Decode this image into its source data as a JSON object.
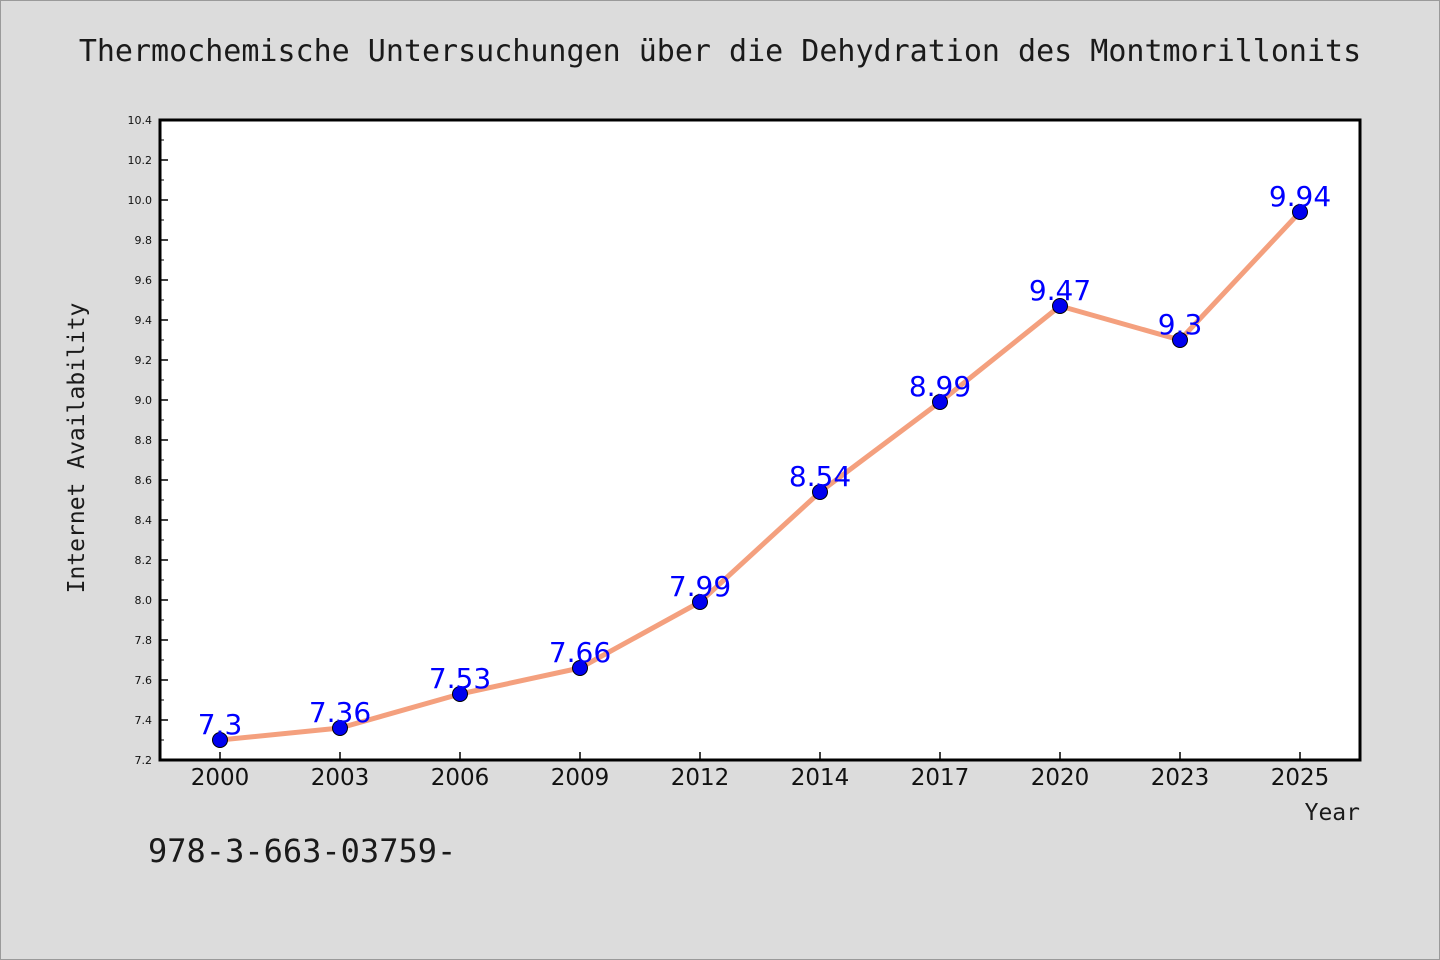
{
  "chart_data": {
    "type": "line",
    "title": "Thermochemische Untersuchungen über die Dehydration des Montmorillonits",
    "xlabel": "Year",
    "ylabel": "Internet Availability",
    "categories": [
      "2000",
      "2003",
      "2006",
      "2009",
      "2012",
      "2014",
      "2017",
      "2020",
      "2023",
      "2025"
    ],
    "series": [
      {
        "values": [
          7.3,
          7.36,
          7.53,
          7.66,
          7.99,
          8.54,
          8.99,
          9.47,
          9.3,
          9.94
        ],
        "data_labels": [
          "7.3",
          "7.36",
          "7.53",
          "7.66",
          "7.99",
          "8.54",
          "8.99",
          "9.47",
          "9.3",
          "9.94"
        ]
      }
    ],
    "ylim": [
      7.2,
      10.4
    ],
    "yticks": [
      "7.2",
      "7.4",
      "7.6",
      "7.8",
      "8.0",
      "8.2",
      "8.4",
      "8.6",
      "8.8",
      "9.0",
      "9.2",
      "9.4",
      "9.6",
      "9.8",
      "10.0",
      "10.2",
      "10.4"
    ],
    "grid": false,
    "legend": "none",
    "colors": {
      "line": "#f4a07e",
      "marker": "#0000ee",
      "data_label": "#0000ff",
      "background": "#dcdcdc",
      "plot_background": "#ffffff"
    }
  },
  "caption": "978-3-663-03759-"
}
